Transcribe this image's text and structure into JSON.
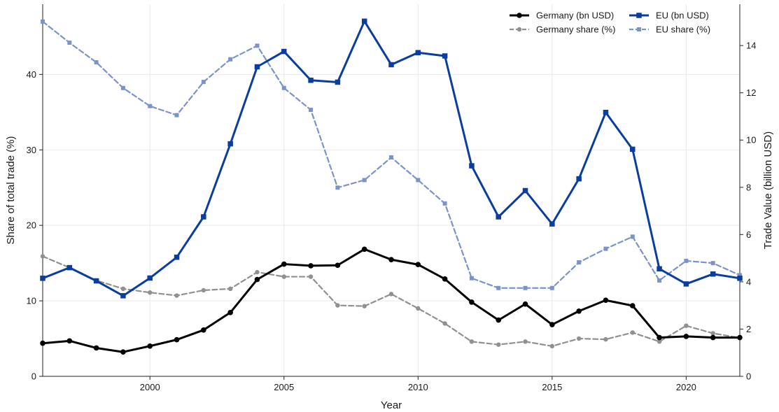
{
  "chart_data": {
    "type": "line",
    "xlabel": "Year",
    "ylabel_left": "Share of total trade (%)",
    "ylabel_right": "Trade Value (billion USD)",
    "xlim": [
      1996,
      2022
    ],
    "ylim_left": [
      0,
      49.3
    ],
    "ylim_right": [
      0,
      15.75
    ],
    "x_ticks": [
      2000,
      2005,
      2010,
      2015,
      2020
    ],
    "y_left_ticks": [
      0,
      10,
      20,
      30,
      40
    ],
    "y_right_ticks": [
      0,
      2,
      4,
      6,
      8,
      10,
      12,
      14
    ],
    "grid": true,
    "legend_position": "top-right",
    "x": [
      1996,
      1997,
      1998,
      1999,
      2000,
      2001,
      2002,
      2003,
      2004,
      2005,
      2006,
      2007,
      2008,
      2009,
      2010,
      2011,
      2012,
      2013,
      2014,
      2015,
      2016,
      2017,
      2018,
      2019,
      2020,
      2021,
      2022
    ],
    "series": [
      {
        "name": "Germany (bn USD)",
        "axis": "right",
        "color": "#000000",
        "line_style": "solid",
        "marker": "circle",
        "values": [
          1.4,
          1.5,
          1.2,
          1.03,
          1.28,
          1.55,
          1.96,
          2.7,
          4.1,
          4.75,
          4.68,
          4.7,
          5.38,
          4.94,
          4.73,
          4.12,
          3.14,
          2.38,
          3.06,
          2.19,
          2.76,
          3.22,
          2.99,
          1.64,
          1.69,
          1.64,
          1.64
        ]
      },
      {
        "name": "EU (bn USD)",
        "axis": "right",
        "color": "#0a3d9e",
        "line_style": "solid",
        "marker": "square",
        "values": [
          4.15,
          4.6,
          4.04,
          3.41,
          4.16,
          5.04,
          6.75,
          9.84,
          13.1,
          13.75,
          12.53,
          12.45,
          15.03,
          13.19,
          13.7,
          13.56,
          8.91,
          6.75,
          7.86,
          6.45,
          8.36,
          11.17,
          9.61,
          4.55,
          3.91,
          4.33,
          4.15
        ]
      },
      {
        "name": "Germany share (%)",
        "axis": "left",
        "color": "#909090",
        "line_style": "dashed",
        "marker": "circle",
        "values": [
          15.9,
          14.4,
          12.7,
          11.6,
          11.1,
          10.7,
          11.4,
          11.6,
          13.8,
          13.2,
          13.2,
          9.4,
          9.3,
          10.9,
          9.0,
          7.0,
          4.6,
          4.2,
          4.6,
          4.0,
          5.0,
          4.9,
          5.8,
          4.6,
          6.7,
          5.7,
          5.1
        ]
      },
      {
        "name": "EU share (%)",
        "axis": "left",
        "color": "#7b93c8",
        "line_style": "dashed",
        "marker": "square",
        "values": [
          47.0,
          44.2,
          41.6,
          38.2,
          35.8,
          34.6,
          39.0,
          42.0,
          43.8,
          38.2,
          35.3,
          25.0,
          26.0,
          29.0,
          26.0,
          22.9,
          13.0,
          11.7,
          11.7,
          11.7,
          15.1,
          16.9,
          18.5,
          12.7,
          15.3,
          15.0,
          13.4
        ]
      }
    ]
  }
}
